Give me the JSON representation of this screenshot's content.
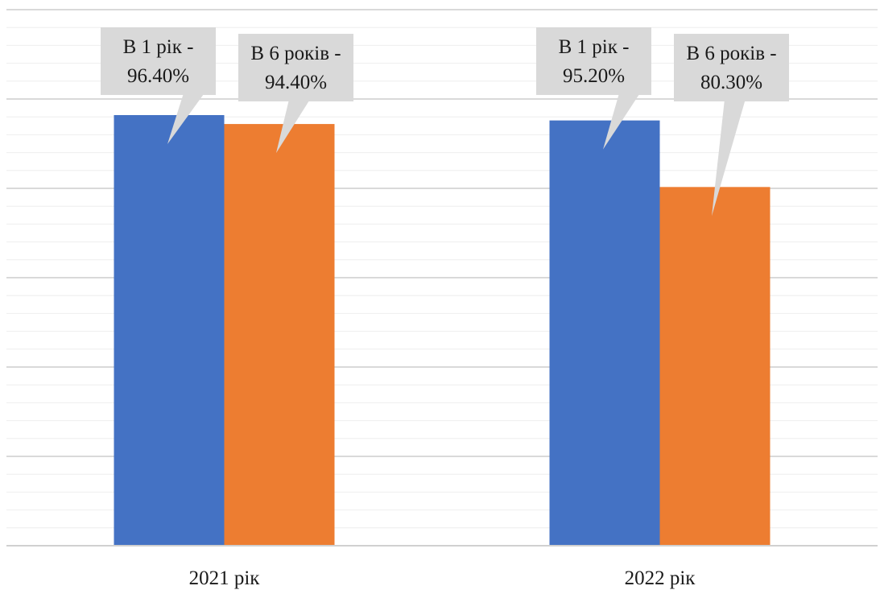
{
  "chart_data": {
    "type": "bar",
    "title": "",
    "xlabel": "",
    "ylabel": "",
    "categories": [
      "2021 рік",
      "2022 рік"
    ],
    "series": [
      {
        "name": "В 1 рік",
        "color": "#4472C4",
        "values": [
          96.4,
          95.2
        ]
      },
      {
        "name": "В 6 років",
        "color": "#ED7D31",
        "values": [
          94.4,
          80.3
        ]
      }
    ],
    "data_labels": [
      [
        {
          "line1": "В 1 рік -",
          "line2": "96.40%"
        },
        {
          "line1": "В 1 рік -",
          "line2": "95.20%"
        }
      ],
      [
        {
          "line1": "В 6 років -",
          "line2": "94.40%"
        },
        {
          "line1": "В 6 років -",
          "line2": "80.30%"
        }
      ]
    ],
    "ylim": [
      0,
      120
    ],
    "grid": true,
    "legend": "none",
    "gridline_color": "#d9d9d9",
    "callout_color": "#d9d9d9"
  }
}
